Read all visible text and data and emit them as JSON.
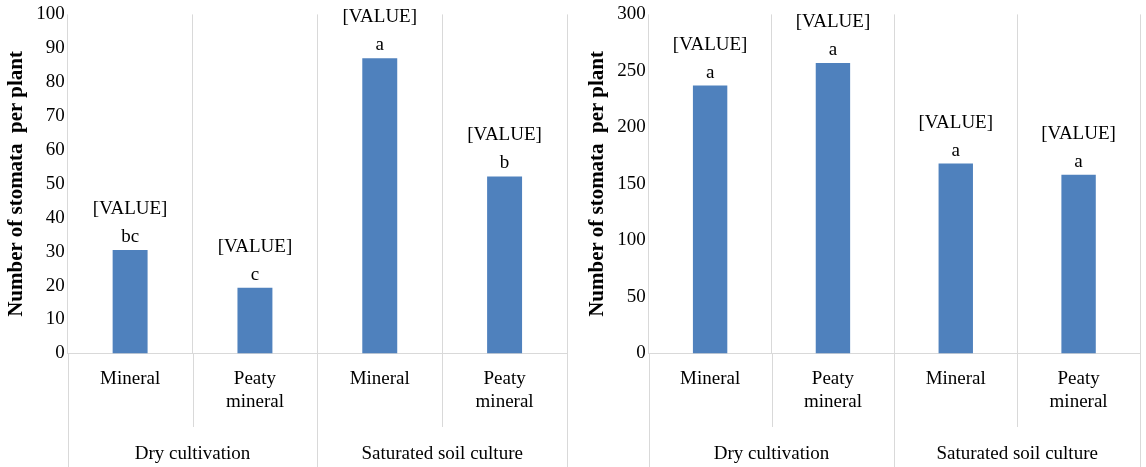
{
  "chart_data": [
    {
      "type": "bar",
      "ylabel": "Number of stomata  per plant",
      "categories": [
        "Mineral",
        "Peaty mineral",
        "Mineral",
        "Peaty mineral"
      ],
      "values": [
        30.5,
        19.4,
        87.1,
        52.2
      ],
      "color": "#4f81bd",
      "value_labels": [
        "[VALUE]\nbc",
        "[VALUE]\nc",
        "[VALUE]\na",
        "[VALUE]\nb"
      ],
      "ylim": [
        0,
        100
      ],
      "yticks": [
        0,
        10,
        20,
        30,
        40,
        50,
        60,
        70,
        80,
        90,
        100
      ],
      "grid": "x",
      "annotations": [
        "Dry cultivation",
        "Saturated soil culture"
      ]
    },
    {
      "type": "bar",
      "ylabel": "Number of stomata  per plant",
      "categories": [
        "Mineral",
        "Peaty mineral",
        "Mineral",
        "Peaty mineral"
      ],
      "values": [
        237,
        257,
        168,
        158
      ],
      "color": "#4f81bd",
      "value_labels": [
        "[VALUE]\na",
        "[VALUE]\na",
        "[VALUE]\na",
        "[VALUE]\na"
      ],
      "ylim": [
        0,
        300
      ],
      "yticks": [
        0,
        50,
        100,
        150,
        200,
        250,
        300
      ],
      "grid": "x",
      "annotations": [
        "Dry cultivation",
        "Saturated soil culture"
      ]
    }
  ]
}
